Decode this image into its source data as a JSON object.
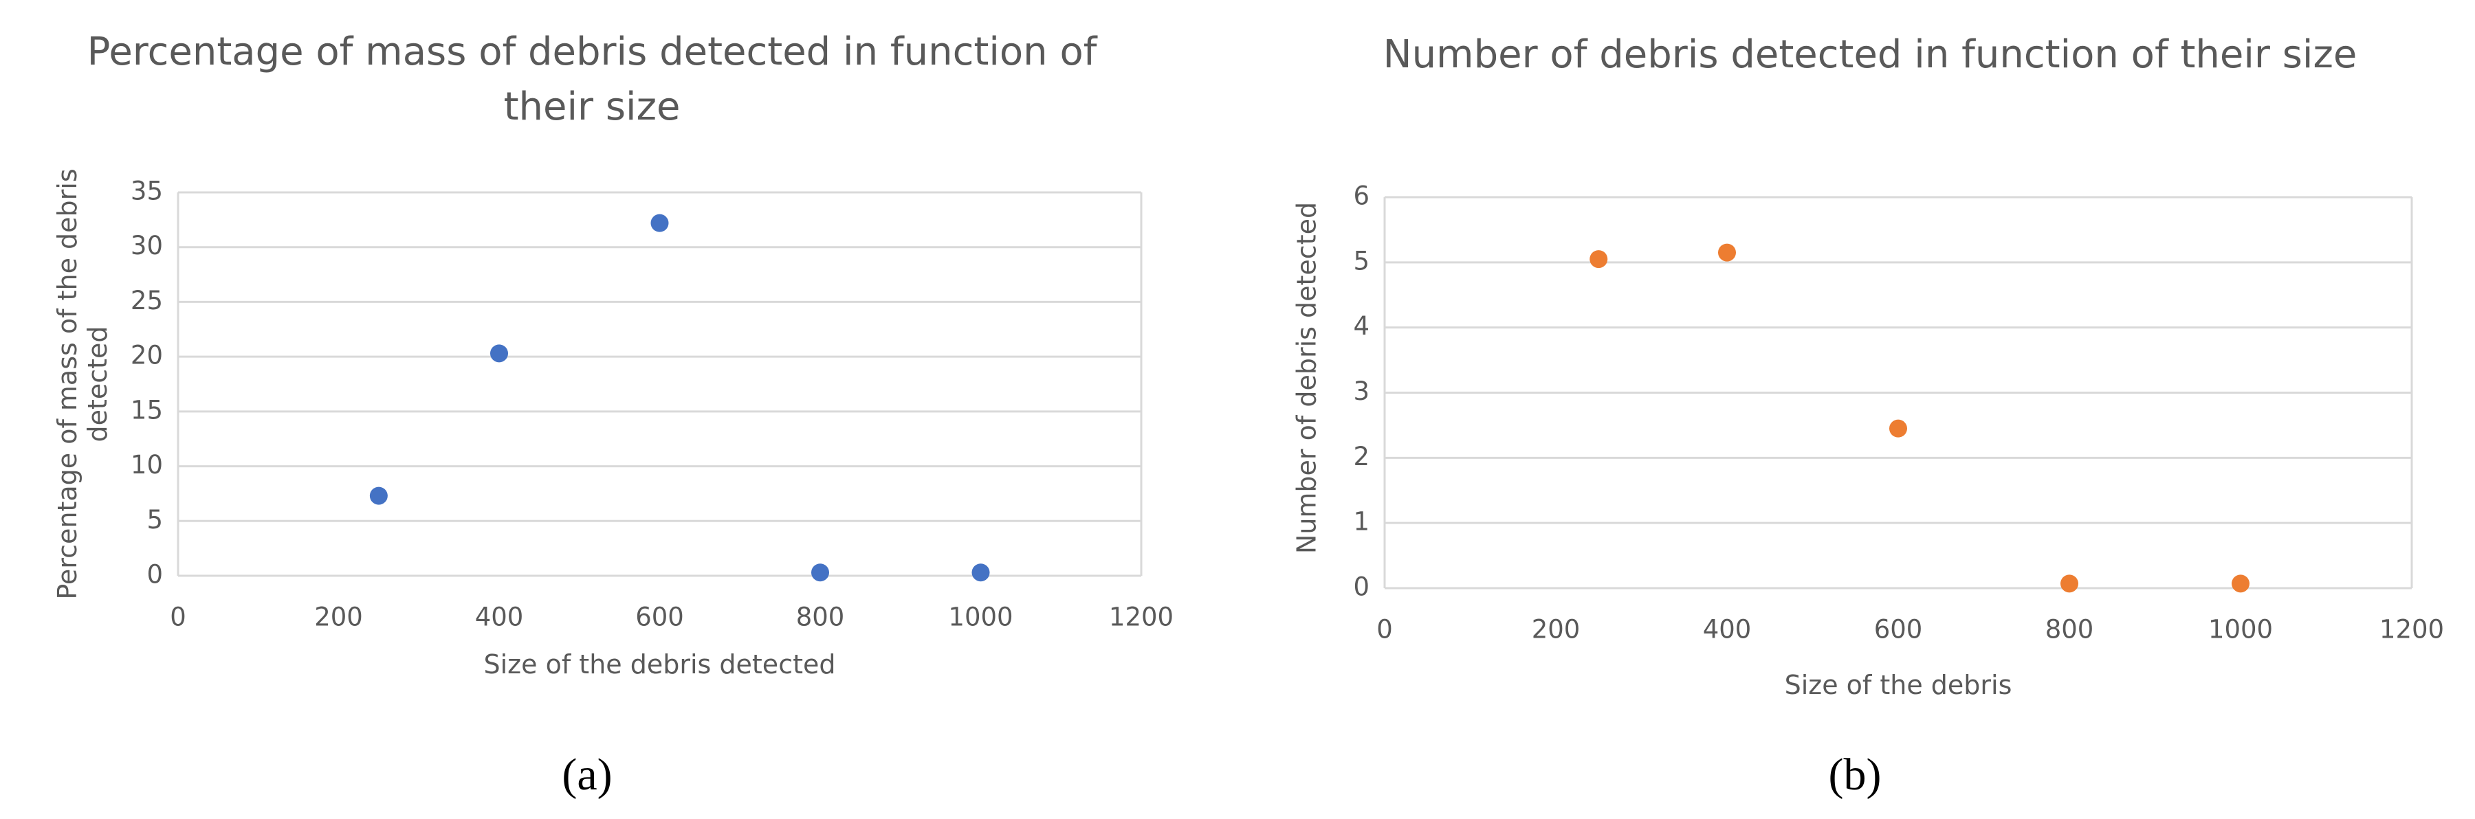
{
  "chart_data": [
    {
      "type": "scatter",
      "title": "Percentage of mass of debris detected in function of their size",
      "x_label": "Size of the debris detected",
      "y_label": "Percentage of mass of the debris detected",
      "panel_label": "(a)",
      "x": [
        250,
        400,
        600,
        800,
        1000
      ],
      "values": [
        7.3,
        20.3,
        32.2,
        0.3,
        0.3
      ],
      "color": "#4472c4",
      "xlim": [
        0,
        1200
      ],
      "xticks": [
        0,
        200,
        400,
        600,
        800,
        1000,
        1200
      ],
      "ylim": [
        0,
        35
      ],
      "yticks": [
        0,
        5,
        10,
        15,
        20,
        25,
        30,
        35
      ],
      "grid": true
    },
    {
      "type": "scatter",
      "title": "Number of debris detected in function of their size",
      "x_label": "Size of the debris",
      "y_label": "Number of debris detected",
      "panel_label": "(b)",
      "x": [
        250,
        400,
        600,
        800,
        1000
      ],
      "values": [
        5.05,
        5.15,
        2.45,
        0.07,
        0.07
      ],
      "color": "#ed7d31",
      "xlim": [
        0,
        1200
      ],
      "xticks": [
        0,
        200,
        400,
        600,
        800,
        1000,
        1200
      ],
      "ylim": [
        0,
        6
      ],
      "yticks": [
        0,
        1,
        2,
        3,
        4,
        5,
        6
      ],
      "grid": true
    }
  ]
}
